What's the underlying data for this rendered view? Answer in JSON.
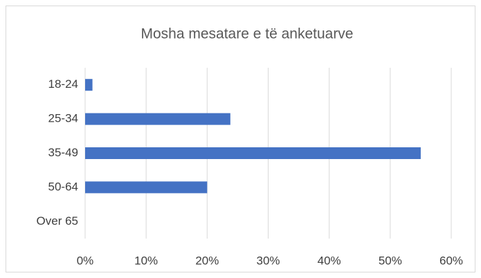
{
  "chart_data": {
    "type": "bar",
    "orientation": "horizontal",
    "title": "Mosha mesatare e të anketuarve",
    "categories": [
      "18-24",
      "25-34",
      "35-49",
      "50-64",
      "Over 65"
    ],
    "values": [
      1.2,
      23.8,
      55,
      20,
      0
    ],
    "color": "#4472c4",
    "xlim": [
      0,
      60
    ],
    "xticks": [
      {
        "value": 0,
        "label": "0%"
      },
      {
        "value": 10,
        "label": "10%"
      },
      {
        "value": 20,
        "label": "20%"
      },
      {
        "value": 30,
        "label": "30%"
      },
      {
        "value": 40,
        "label": "40%"
      },
      {
        "value": 50,
        "label": "50%"
      },
      {
        "value": 60,
        "label": "60%"
      }
    ],
    "grid": true
  }
}
